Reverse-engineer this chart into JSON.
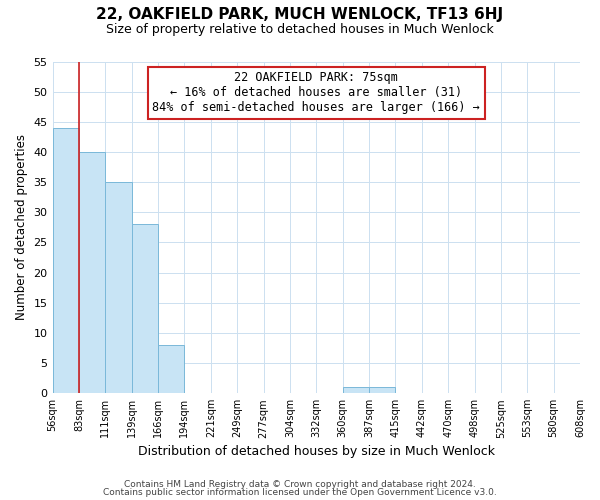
{
  "title": "22, OAKFIELD PARK, MUCH WENLOCK, TF13 6HJ",
  "subtitle": "Size of property relative to detached houses in Much Wenlock",
  "xlabel": "Distribution of detached houses by size in Much Wenlock",
  "ylabel": "Number of detached properties",
  "bin_labels": [
    "56sqm",
    "83sqm",
    "111sqm",
    "139sqm",
    "166sqm",
    "194sqm",
    "221sqm",
    "249sqm",
    "277sqm",
    "304sqm",
    "332sqm",
    "360sqm",
    "387sqm",
    "415sqm",
    "442sqm",
    "470sqm",
    "498sqm",
    "525sqm",
    "553sqm",
    "580sqm",
    "608sqm"
  ],
  "bar_values": [
    44,
    40,
    35,
    28,
    8,
    0,
    0,
    0,
    0,
    0,
    0,
    1,
    1,
    0,
    0,
    0,
    0,
    0,
    0,
    0
  ],
  "bar_color": "#c8e4f5",
  "bar_edge_color": "#7ab8d9",
  "property_line_color": "#cc2222",
  "ylim": [
    0,
    55
  ],
  "yticks": [
    0,
    5,
    10,
    15,
    20,
    25,
    30,
    35,
    40,
    45,
    50,
    55
  ],
  "annotation_title": "22 OAKFIELD PARK: 75sqm",
  "annotation_line1": "← 16% of detached houses are smaller (31)",
  "annotation_line2": "84% of semi-detached houses are larger (166) →",
  "footer1": "Contains HM Land Registry data © Crown copyright and database right 2024.",
  "footer2": "Contains public sector information licensed under the Open Government Licence v3.0.",
  "background_color": "#ffffff",
  "grid_color": "#cce0f0"
}
